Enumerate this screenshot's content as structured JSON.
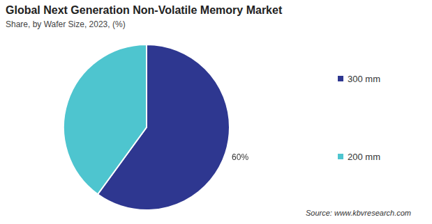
{
  "chart_data": {
    "type": "pie",
    "title": "Global Next Generation Non-Volatile Memory Market",
    "subtitle": "Share, by Wafer Size, 2023, (%)",
    "categories": [
      "300 mm",
      "200 mm"
    ],
    "values": [
      60,
      40
    ],
    "colors": [
      "#2e3790",
      "#4ec5cf"
    ],
    "data_labels": true,
    "value_labels": [
      "60%",
      null
    ],
    "legend": "right",
    "source": "Source: www.kbvresearch.com"
  }
}
